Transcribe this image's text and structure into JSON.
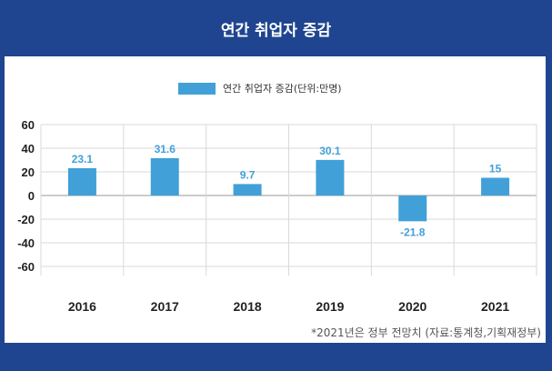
{
  "header": {
    "title": "연간 취업자 증감"
  },
  "footnote": "*2021년은 정부 전망치 (자료:통계청,기획재정부)",
  "colors": {
    "bar": "#41a0d8",
    "background": "#1f4590",
    "grid": "#d9d9d9",
    "axis": "#999999"
  },
  "chart_data": {
    "type": "bar",
    "categories": [
      "2016",
      "2017",
      "2018",
      "2019",
      "2020",
      "2021"
    ],
    "series": [
      {
        "name": "연간 취업자 증감(단위:만명)",
        "values": [
          23.1,
          31.6,
          9.7,
          30.1,
          -21.8,
          15
        ]
      }
    ],
    "data_labels": [
      "23.1",
      "31.6",
      "9.7",
      "30.1",
      "-21.8",
      "15"
    ],
    "y_ticks": [
      "60",
      "40",
      "20",
      "0",
      "-20",
      "-40",
      "-60"
    ],
    "ylim": [
      -60,
      60
    ],
    "title": "",
    "xlabel": "",
    "ylabel": "",
    "grid": true,
    "legend_position": "top"
  }
}
